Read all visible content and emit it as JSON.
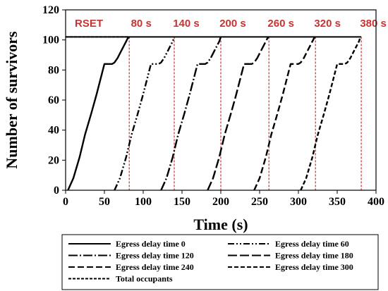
{
  "chart_data": {
    "type": "line",
    "title": "",
    "xlabel": "Time (s)",
    "ylabel": "Number of survivors",
    "xlim": [
      0,
      400
    ],
    "ylim": [
      0,
      120
    ],
    "xticks": [
      0,
      50,
      100,
      150,
      200,
      250,
      300,
      350,
      400
    ],
    "yticks": [
      0,
      20,
      40,
      60,
      80,
      100,
      120
    ],
    "grid": false,
    "legend_position": "bottom",
    "rset_label": "RSET",
    "rset_color": "#c83232",
    "rset_lines": [
      {
        "x": 82,
        "label": "80 s"
      },
      {
        "x": 140,
        "label": "140 s"
      },
      {
        "x": 200,
        "label": "200 s"
      },
      {
        "x": 262,
        "label": "260 s"
      },
      {
        "x": 322,
        "label": "320 s"
      },
      {
        "x": 381,
        "label": "380 s"
      }
    ],
    "total_occupants": 102,
    "series": [
      {
        "name": "Egress delay time 0",
        "style": "solid",
        "delay": 0,
        "x": [
          3,
          10,
          18,
          25,
          33,
          40,
          47,
          50,
          55,
          60,
          63,
          67,
          71,
          75,
          78,
          80,
          82
        ],
        "y": [
          0,
          8,
          22,
          37,
          51,
          64,
          78,
          84,
          84,
          84,
          85,
          88,
          92,
          96,
          99,
          101,
          102
        ]
      },
      {
        "name": "Egress delay time 60",
        "style": "dashdotdot",
        "delay": 60,
        "x": [
          63,
          70,
          78,
          85,
          93,
          100,
          107,
          110,
          115,
          120,
          123,
          127,
          131,
          135,
          138,
          140
        ],
        "y": [
          0,
          8,
          22,
          37,
          51,
          64,
          78,
          84,
          84,
          84,
          85,
          88,
          92,
          96,
          99,
          102
        ]
      },
      {
        "name": "Egress delay time 120",
        "style": "dashdot",
        "delay": 120,
        "x": [
          123,
          130,
          138,
          145,
          153,
          160,
          167,
          170,
          175,
          180,
          183,
          187,
          191,
          195,
          198,
          200
        ],
        "y": [
          0,
          8,
          22,
          37,
          51,
          64,
          78,
          84,
          84,
          84,
          85,
          88,
          92,
          96,
          99,
          102
        ]
      },
      {
        "name": "Egress delay time 180",
        "style": "longdash",
        "delay": 180,
        "x": [
          183,
          190,
          198,
          205,
          213,
          220,
          227,
          230,
          235,
          240,
          243,
          247,
          251,
          255,
          258,
          261
        ],
        "y": [
          0,
          8,
          22,
          37,
          51,
          64,
          78,
          84,
          84,
          84,
          85,
          88,
          92,
          96,
          99,
          102
        ]
      },
      {
        "name": "Egress delay time 240",
        "style": "dash",
        "delay": 240,
        "x": [
          243,
          250,
          258,
          265,
          273,
          280,
          287,
          290,
          295,
          300,
          303,
          307,
          311,
          315,
          318,
          321
        ],
        "y": [
          0,
          8,
          22,
          37,
          51,
          64,
          78,
          84,
          84,
          84,
          85,
          88,
          92,
          96,
          99,
          102
        ]
      },
      {
        "name": "Egress delay time 300",
        "style": "shortdash",
        "delay": 300,
        "x": [
          303,
          310,
          318,
          325,
          333,
          340,
          347,
          350,
          355,
          360,
          363,
          367,
          371,
          375,
          378,
          380
        ],
        "y": [
          0,
          8,
          22,
          37,
          51,
          64,
          78,
          84,
          84,
          84,
          85,
          88,
          92,
          96,
          99,
          102
        ]
      },
      {
        "name": "Total occupants",
        "style": "dotted",
        "delay": null,
        "x": [
          0,
          82
        ],
        "y": [
          102,
          102
        ]
      }
    ],
    "legend": [
      "Egress delay time 0",
      "Egress delay time 60",
      "Egress delay time 120",
      "Egress delay time 180",
      "Egress delay time 240",
      "Egress delay time 300",
      "Total occupants"
    ]
  }
}
